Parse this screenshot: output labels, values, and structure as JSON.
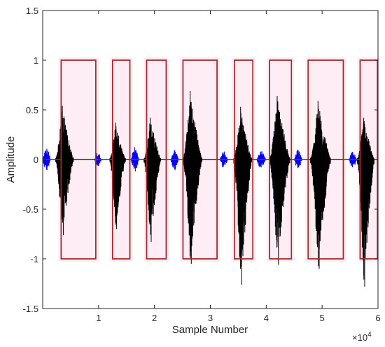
{
  "chart_data": {
    "type": "line",
    "title": "",
    "xlabel": "Sample Number",
    "ylabel": "Amplitude",
    "x_exponent_label": "×10",
    "x_exponent_power": "4",
    "xlim": [
      0,
      6
    ],
    "ylim": [
      -1.5,
      1.5
    ],
    "xticks": [
      {
        "value": 1,
        "label": "1"
      },
      {
        "value": 2,
        "label": "2"
      },
      {
        "value": 3,
        "label": "3"
      },
      {
        "value": 4,
        "label": "4"
      },
      {
        "value": 5,
        "label": "5"
      },
      {
        "value": 6,
        "label": "6"
      }
    ],
    "yticks": [
      {
        "value": 1.5,
        "label": "1.5"
      },
      {
        "value": 1,
        "label": "1"
      },
      {
        "value": 0.5,
        "label": "0.5"
      },
      {
        "value": 0,
        "label": "0"
      },
      {
        "value": -0.5,
        "label": "-0.5"
      },
      {
        "value": -1,
        "label": "-1"
      },
      {
        "value": -1.5,
        "label": "-1.5"
      }
    ],
    "grid": false,
    "legend": "none",
    "colors": {
      "speech": "#000000",
      "noise": "#0000ff",
      "segment_box": "#a52a2a",
      "segment_shade": "#ff69b4",
      "axis": "#262626"
    },
    "series": [
      {
        "kind": "segments",
        "color_key": "segment_box",
        "segments": [
          {
            "start": 0.33,
            "end": 0.95,
            "top": 1,
            "bottom": -1
          },
          {
            "start": 1.25,
            "end": 1.56,
            "top": 1,
            "bottom": -1
          },
          {
            "start": 1.86,
            "end": 2.21,
            "top": 1,
            "bottom": -1
          },
          {
            "start": 2.51,
            "end": 3.12,
            "top": 1,
            "bottom": -1
          },
          {
            "start": 3.43,
            "end": 3.76,
            "top": 1,
            "bottom": -1
          },
          {
            "start": 4.06,
            "end": 4.45,
            "top": 1,
            "bottom": -1
          },
          {
            "start": 4.75,
            "end": 5.38,
            "top": 1,
            "bottom": -1
          },
          {
            "start": 5.68,
            "end": 5.99,
            "top": 1,
            "bottom": -1
          }
        ]
      },
      {
        "kind": "noise_bursts",
        "color_key": "noise",
        "bursts": [
          {
            "center": 0.07,
            "width": 0.14,
            "amp": 0.12
          },
          {
            "center": 0.99,
            "width": 0.12,
            "amp": 0.08
          },
          {
            "center": 1.65,
            "width": 0.14,
            "amp": 0.13
          },
          {
            "center": 2.36,
            "width": 0.14,
            "amp": 0.11
          },
          {
            "center": 3.24,
            "width": 0.14,
            "amp": 0.09
          },
          {
            "center": 3.91,
            "width": 0.16,
            "amp": 0.1
          },
          {
            "center": 4.57,
            "width": 0.14,
            "amp": 0.1
          },
          {
            "center": 5.55,
            "width": 0.14,
            "amp": 0.09
          }
        ]
      },
      {
        "kind": "speech_bursts",
        "color_key": "speech",
        "bursts": [
          {
            "center": 0.39,
            "width": 0.32,
            "max": 0.54,
            "min": -0.76
          },
          {
            "center": 1.34,
            "width": 0.28,
            "max": 0.37,
            "min": -0.7
          },
          {
            "center": 1.96,
            "width": 0.3,
            "max": 0.42,
            "min": -0.83
          },
          {
            "center": 2.68,
            "width": 0.34,
            "max": 0.69,
            "min": -1.05
          },
          {
            "center": 3.58,
            "width": 0.32,
            "max": 0.53,
            "min": -1.26
          },
          {
            "center": 4.24,
            "width": 0.36,
            "max": 0.64,
            "min": -1.06
          },
          {
            "center": 4.97,
            "width": 0.36,
            "max": 0.59,
            "min": -1.1
          },
          {
            "center": 5.78,
            "width": 0.3,
            "max": 0.42,
            "min": -1.28
          }
        ]
      }
    ]
  }
}
